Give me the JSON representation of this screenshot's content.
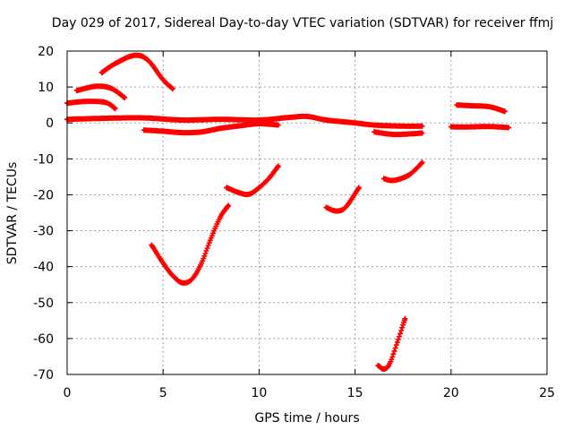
{
  "chart_data": {
    "type": "scatter",
    "title": "Day 029 of 2017, Sidereal Day-to-day VTEC variation (SDTVAR) for receiver ffmj",
    "xlabel": "GPS time / hours",
    "ylabel": "SDTVAR / TECUs",
    "xlim": [
      0,
      25
    ],
    "ylim": [
      -70,
      20
    ],
    "xticks": [
      0,
      5,
      10,
      15,
      20,
      25
    ],
    "yticks": [
      -70,
      -60,
      -50,
      -40,
      -30,
      -20,
      -10,
      0,
      10,
      20
    ],
    "grid": true,
    "marker": "plus",
    "color": "#ff0000",
    "series": [
      {
        "values": [
          [
            0.0,
            1.0
          ],
          [
            2.0,
            1.3
          ],
          [
            4.0,
            1.4
          ],
          [
            6.0,
            0.8
          ],
          [
            8.0,
            1.0
          ],
          [
            10.0,
            0.8
          ],
          [
            11.5,
            1.5
          ],
          [
            12.5,
            1.8
          ],
          [
            13.5,
            0.8
          ],
          [
            15.0,
            0.0
          ],
          [
            16.0,
            -0.6
          ],
          [
            17.5,
            -0.9
          ],
          [
            18.5,
            -0.9
          ]
        ]
      },
      {
        "values": [
          [
            20.0,
            -1.1
          ],
          [
            21.0,
            -1.1
          ],
          [
            22.0,
            -1.0
          ],
          [
            23.0,
            -1.3
          ]
        ]
      },
      {
        "values": [
          [
            4.0,
            -2.0
          ],
          [
            5.0,
            -2.3
          ],
          [
            6.0,
            -2.7
          ],
          [
            7.0,
            -2.5
          ],
          [
            8.0,
            -1.5
          ],
          [
            9.0,
            -0.8
          ],
          [
            10.0,
            -0.2
          ],
          [
            11.0,
            -0.6
          ]
        ]
      },
      {
        "values": [
          [
            16.0,
            -2.5
          ],
          [
            17.0,
            -3.2
          ],
          [
            18.0,
            -3.0
          ],
          [
            18.5,
            -2.8
          ]
        ]
      },
      {
        "values": [
          [
            0.0,
            5.5
          ],
          [
            1.0,
            6.0
          ],
          [
            2.0,
            5.7
          ],
          [
            2.5,
            4.0
          ]
        ]
      },
      {
        "values": [
          [
            0.5,
            9.0
          ],
          [
            1.5,
            10.2
          ],
          [
            2.3,
            9.6
          ],
          [
            3.0,
            7.0
          ]
        ]
      },
      {
        "values": [
          [
            1.8,
            14.0
          ],
          [
            2.5,
            16.5
          ],
          [
            3.5,
            18.8
          ],
          [
            4.2,
            17.5
          ],
          [
            5.0,
            12.0
          ],
          [
            5.5,
            9.5
          ]
        ]
      },
      {
        "values": [
          [
            20.3,
            5.0
          ],
          [
            21.0,
            4.8
          ],
          [
            22.0,
            4.5
          ],
          [
            22.8,
            3.2
          ]
        ]
      },
      {
        "values": [
          [
            4.4,
            -34.0
          ],
          [
            5.0,
            -39.0
          ],
          [
            5.5,
            -42.5
          ],
          [
            6.0,
            -44.5
          ],
          [
            6.5,
            -43.5
          ],
          [
            7.0,
            -39.0
          ],
          [
            7.5,
            -32.0
          ],
          [
            8.0,
            -26.0
          ],
          [
            8.4,
            -23.0
          ]
        ]
      },
      {
        "values": [
          [
            8.3,
            -18.0
          ],
          [
            9.0,
            -19.5
          ],
          [
            9.5,
            -19.8
          ],
          [
            10.0,
            -18.0
          ],
          [
            10.5,
            -15.5
          ],
          [
            11.0,
            -12.0
          ]
        ]
      },
      {
        "values": [
          [
            13.5,
            -23.5
          ],
          [
            14.0,
            -24.5
          ],
          [
            14.5,
            -23.5
          ],
          [
            15.2,
            -18.0
          ]
        ]
      },
      {
        "values": [
          [
            16.5,
            -15.5
          ],
          [
            17.0,
            -16.0
          ],
          [
            17.8,
            -14.5
          ],
          [
            18.5,
            -11.0
          ]
        ]
      },
      {
        "values": [
          [
            16.2,
            -67.5
          ],
          [
            16.5,
            -68.5
          ],
          [
            16.8,
            -67.0
          ],
          [
            17.2,
            -61.0
          ],
          [
            17.6,
            -54.5
          ]
        ]
      }
    ]
  }
}
